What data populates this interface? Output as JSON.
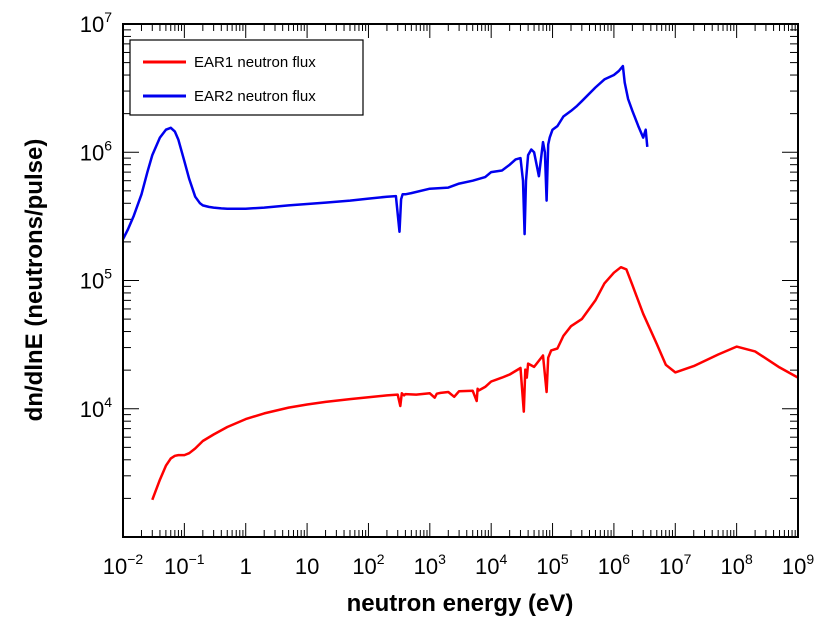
{
  "chart_data": {
    "type": "line",
    "title": "",
    "xlabel": "neutron energy (eV)",
    "ylabel": "dn/dlnE (neutrons/pulse)",
    "xscale": "log",
    "yscale": "log",
    "xlim": [
      0.01,
      1000000000
    ],
    "ylim": [
      1000,
      10000000
    ],
    "grid": false,
    "legend_position": "top-left",
    "x_tick_labels": [
      {
        "x": 0.01,
        "base": "10",
        "exp": "−2"
      },
      {
        "x": 0.1,
        "base": "10",
        "exp": "−1"
      },
      {
        "x": 1,
        "base": "1",
        "exp": ""
      },
      {
        "x": 10,
        "base": "10",
        "exp": ""
      },
      {
        "x": 100,
        "base": "10",
        "exp": "2"
      },
      {
        "x": 1000,
        "base": "10",
        "exp": "3"
      },
      {
        "x": 10000,
        "base": "10",
        "exp": "4"
      },
      {
        "x": 100000,
        "base": "10",
        "exp": "5"
      },
      {
        "x": 1000000,
        "base": "10",
        "exp": "6"
      },
      {
        "x": 10000000,
        "base": "10",
        "exp": "7"
      },
      {
        "x": 100000000,
        "base": "10",
        "exp": "8"
      },
      {
        "x": 1000000000,
        "base": "10",
        "exp": "9"
      }
    ],
    "y_tick_labels": [
      {
        "y": 10000,
        "base": "10",
        "exp": "4"
      },
      {
        "y": 100000,
        "base": "10",
        "exp": "5"
      },
      {
        "y": 1000000,
        "base": "10",
        "exp": "6"
      },
      {
        "y": 10000000,
        "base": "10",
        "exp": "7"
      }
    ],
    "series": [
      {
        "name": "EAR1 neutron flux",
        "color": "#ff0000",
        "x": [
          0.03,
          0.04,
          0.05,
          0.06,
          0.07,
          0.08,
          0.09,
          0.1,
          0.12,
          0.15,
          0.2,
          0.3,
          0.5,
          1,
          2,
          5,
          10,
          20,
          50,
          100,
          200,
          300,
          330,
          350,
          380,
          400,
          600,
          1000,
          1200,
          1300,
          1500,
          2000,
          2500,
          3000,
          5000,
          5800,
          6000,
          6300,
          8000,
          10000,
          15000,
          20000,
          30000,
          34000,
          36000,
          38000,
          40000,
          50000,
          70000,
          80000,
          85000,
          95000,
          120000,
          150000,
          200000,
          300000,
          500000,
          700000,
          1000000,
          1300000,
          1600000,
          2000000,
          3000000,
          5000000,
          7000000,
          10000000,
          20000000,
          50000000,
          100000000,
          200000000,
          500000000,
          1000000000
        ],
        "y": [
          1950,
          2800,
          3600,
          4100,
          4300,
          4350,
          4350,
          4350,
          4500,
          4900,
          5600,
          6300,
          7200,
          8300,
          9200,
          10200,
          10800,
          11300,
          11900,
          12300,
          12700,
          12900,
          10500,
          13200,
          12700,
          13000,
          12900,
          13200,
          12200,
          13100,
          13300,
          13500,
          12400,
          13700,
          13800,
          11500,
          14300,
          13900,
          14800,
          16300,
          17500,
          18500,
          20800,
          9500,
          20200,
          17500,
          22500,
          21200,
          26000,
          13500,
          25000,
          28500,
          29500,
          37000,
          44000,
          50000,
          70000,
          95000,
          115000,
          127000,
          122000,
          92000,
          55000,
          32000,
          22000,
          19200,
          21500,
          26500,
          30500,
          28000,
          21000,
          17500
        ]
      },
      {
        "name": "EAR2 neutron flux",
        "color": "#0000ee",
        "x": [
          0.01,
          0.012,
          0.015,
          0.02,
          0.025,
          0.03,
          0.04,
          0.05,
          0.06,
          0.07,
          0.08,
          0.1,
          0.12,
          0.15,
          0.18,
          0.2,
          0.25,
          0.3,
          0.4,
          0.5,
          0.7,
          1,
          2,
          5,
          10,
          20,
          50,
          100,
          200,
          280,
          320,
          340,
          360,
          400,
          500,
          1000,
          2000,
          3000,
          5000,
          8000,
          10000,
          15000,
          20000,
          25000,
          30000,
          33000,
          35000,
          37000,
          40000,
          45000,
          50000,
          60000,
          70000,
          75000,
          80000,
          85000,
          90000,
          100000,
          120000,
          150000,
          200000,
          250000,
          300000,
          500000,
          700000,
          1000000,
          1200000,
          1400000,
          1500000,
          1700000,
          2000000,
          2500000,
          3000000,
          3300000,
          3500000
        ],
        "y": [
          210000,
          250000,
          320000,
          470000,
          700000,
          950000,
          1300000,
          1500000,
          1550000,
          1450000,
          1250000,
          850000,
          620000,
          450000,
          400000,
          385000,
          375000,
          370000,
          365000,
          362000,
          362000,
          363000,
          370000,
          385000,
          395000,
          405000,
          420000,
          435000,
          450000,
          455000,
          240000,
          430000,
          470000,
          470000,
          480000,
          520000,
          530000,
          570000,
          600000,
          640000,
          700000,
          720000,
          800000,
          880000,
          900000,
          600000,
          230000,
          600000,
          950000,
          1050000,
          1000000,
          650000,
          1200000,
          1000000,
          420000,
          1150000,
          1300000,
          1500000,
          1600000,
          1900000,
          2100000,
          2300000,
          2500000,
          3200000,
          3700000,
          4000000,
          4300000,
          4700000,
          3500000,
          2600000,
          2100000,
          1600000,
          1300000,
          1500000,
          1100000
        ]
      }
    ]
  }
}
